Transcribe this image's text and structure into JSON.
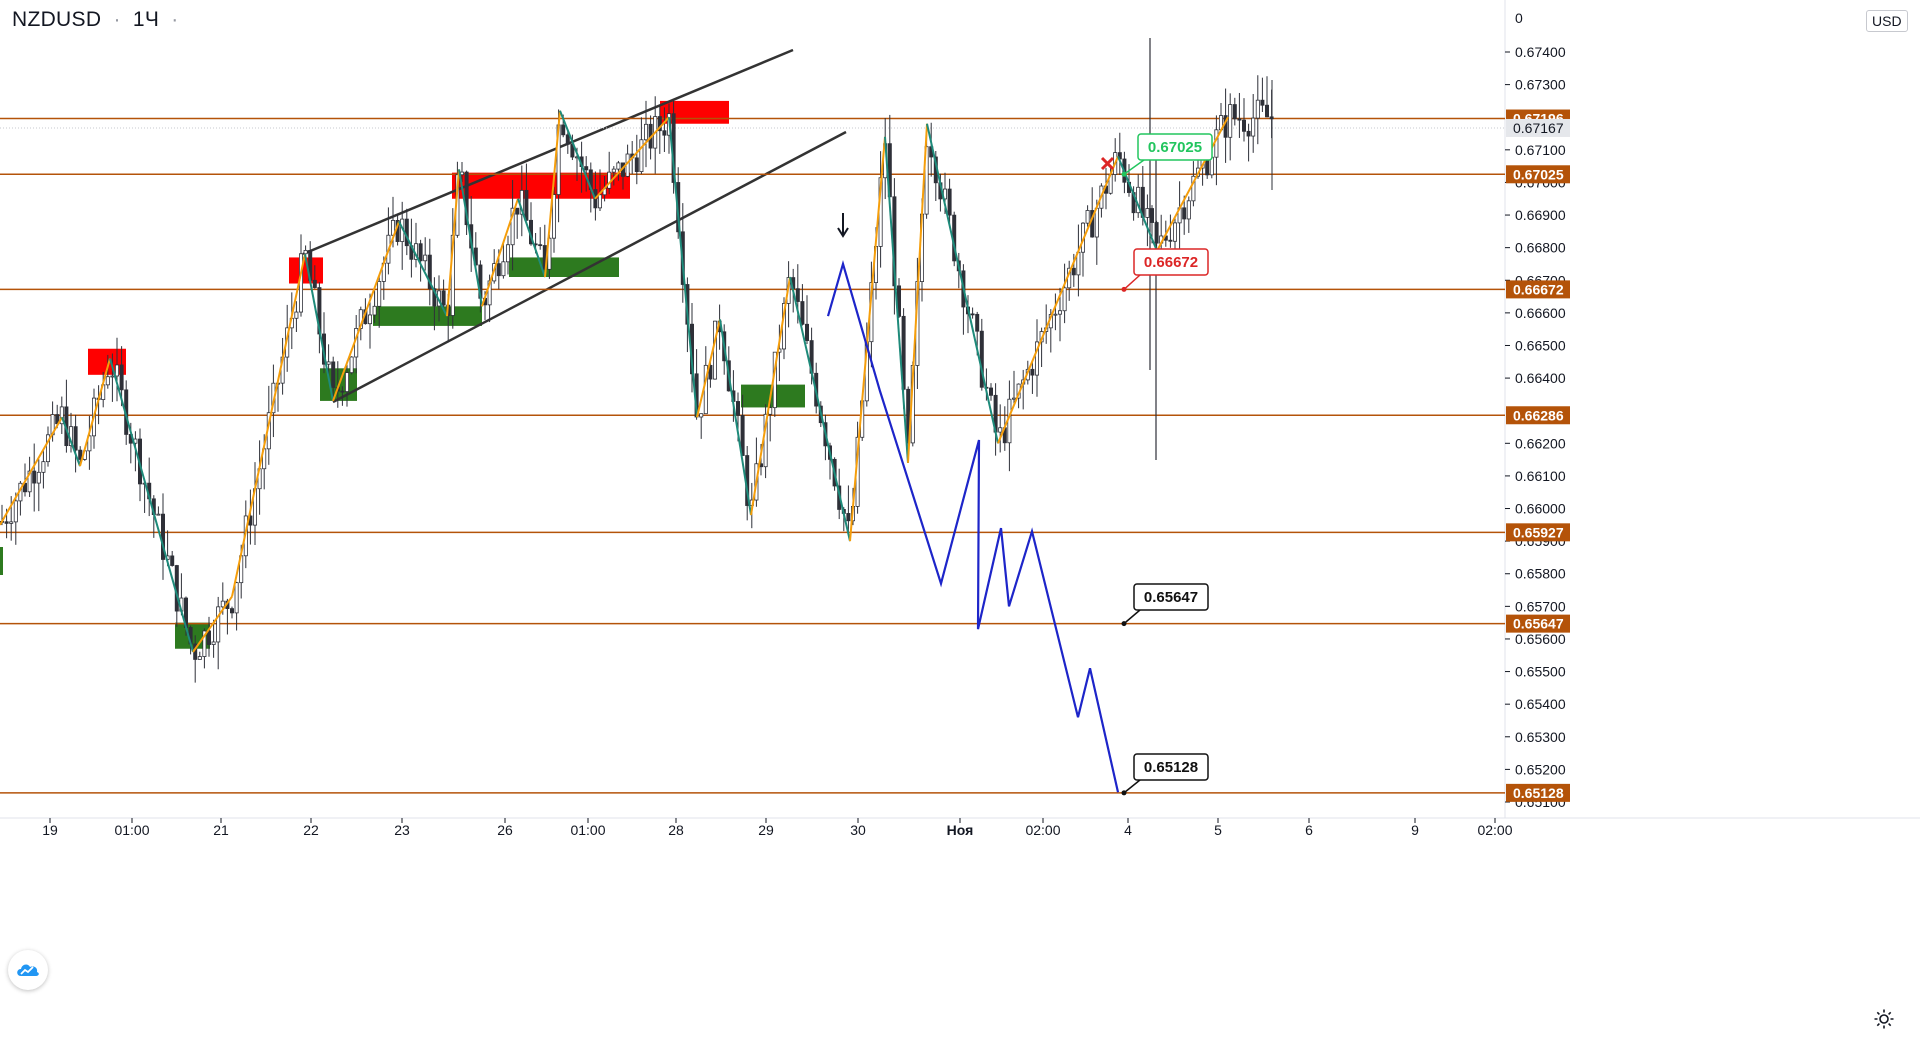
{
  "header": {
    "symbol": "NZDUSD",
    "interval": "1Ч",
    "dot": "·"
  },
  "price_axis": {
    "currency": "USD",
    "ticks": [
      "0.67400",
      "0.67300",
      "0.67100",
      "0.67000",
      "0.66900",
      "0.66800",
      "0.66700",
      "0.66600",
      "0.66500",
      "0.66400",
      "0.66200",
      "0.66100",
      "0.66000",
      "0.65900",
      "0.65800",
      "0.65700",
      "0.65600",
      "0.65500",
      "0.65400",
      "0.65300",
      "0.65200",
      "0.65100"
    ],
    "top_partial_label": "0"
  },
  "time_axis": {
    "labels": [
      "19",
      "01:00",
      "21",
      "22",
      "23",
      "26",
      "01:00",
      "28",
      "29",
      "30",
      "Ноя",
      "02:00",
      "4",
      "5",
      "6",
      "9",
      "02:00"
    ]
  },
  "chart_data": {
    "type": "candlestick",
    "symbol": "NZDUSD",
    "timeframe": "1Ч",
    "ylim": [
      0.6508,
      0.6758
    ],
    "levels": [
      {
        "value": 0.67196,
        "label": "0.67196",
        "color": "#b45309"
      },
      {
        "value": 0.67025,
        "label": "0.67025",
        "color": "#b45309"
      },
      {
        "value": 0.66672,
        "label": "0.66672",
        "color": "#b45309"
      },
      {
        "value": 0.66286,
        "label": "0.66286",
        "color": "#b45309"
      },
      {
        "value": 0.65927,
        "label": "0.65927",
        "color": "#b45309"
      },
      {
        "value": 0.65647,
        "label": "0.65647",
        "color": "#b45309"
      },
      {
        "value": 0.65128,
        "label": "0.65128",
        "color": "#b45309"
      }
    ],
    "current_price": {
      "value": 0.67167,
      "label": "0.67167"
    },
    "callouts": [
      {
        "value": 0.67025,
        "label": "0.67025",
        "color": "#22c55e"
      },
      {
        "value": 0.66672,
        "label": "0.66672",
        "color": "#dc2626"
      },
      {
        "value": 0.65647,
        "label": "0.65647",
        "color": "#111111"
      },
      {
        "value": 0.65128,
        "label": "0.65128",
        "color": "#111111"
      }
    ],
    "supply_zones": [
      {
        "from": 0.6649,
        "to": 0.6641
      },
      {
        "from": 0.6677,
        "to": 0.6669
      },
      {
        "from": 0.6703,
        "to": 0.6695
      },
      {
        "from": 0.6725,
        "to": 0.6718
      }
    ],
    "demand_zones": [
      {
        "from": 0.6643,
        "to": 0.6633
      },
      {
        "from": 0.6662,
        "to": 0.6656
      },
      {
        "from": 0.6677,
        "to": 0.6671
      },
      {
        "from": 0.6638,
        "to": 0.6631
      },
      {
        "from": 0.6565,
        "to": 0.6557
      }
    ],
    "channel": {
      "upper": [
        0.6677,
        0.674
      ],
      "lower": [
        0.6633,
        0.6715
      ]
    },
    "zigzag": [
      0.6595,
      0.6628,
      0.6613,
      0.6646,
      0.6556,
      0.6573,
      0.6678,
      0.6633,
      0.6688,
      0.6659,
      0.6704,
      0.6662,
      0.6695,
      0.6671,
      0.6722,
      0.6695,
      0.672,
      0.6628,
      0.6658,
      0.6598,
      0.6671,
      0.659,
      0.6714,
      0.6614,
      0.6718,
      0.662,
      0.6708,
      0.6679,
      0.672
    ],
    "projection": [
      0.6659,
      0.6675,
      0.6636,
      0.6577,
      0.6621,
      0.6563,
      0.6594,
      0.657,
      0.6593,
      0.6536,
      0.6551,
      0.6513
    ],
    "candles_seed": 7
  },
  "colors": {
    "up": "#2e3038",
    "down": "#2e3038",
    "level": "#b45309",
    "zigzag_up": "#f59e0b",
    "zigzag_down": "#1e8a7a",
    "projection": "#1d25c9",
    "supply": "#ff0000",
    "demand": "#2d7a1f",
    "channel": "#333333"
  },
  "icons": {
    "logo": "tradingview-logo-icon",
    "settings": "gear-icon",
    "arrow": "arrow-down-icon",
    "cross": "cross-mark-icon"
  }
}
